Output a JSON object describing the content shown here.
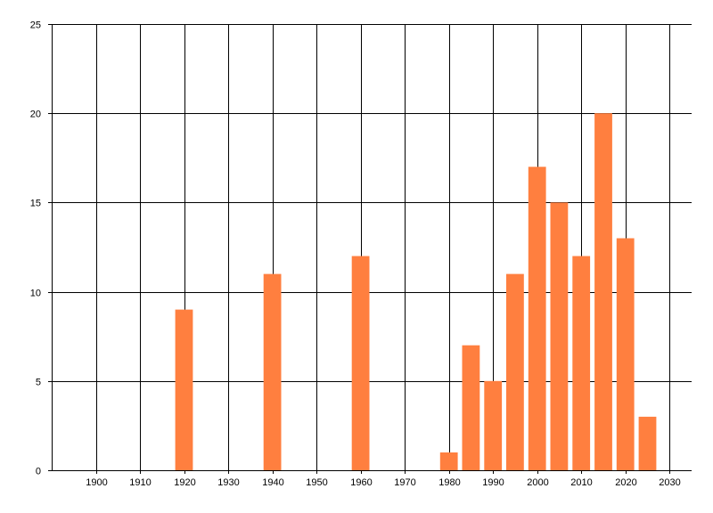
{
  "chart_data": {
    "type": "bar",
    "title": "",
    "xlabel": "",
    "ylabel": "",
    "x": [
      1920,
      1940,
      1960,
      1980,
      1985,
      1990,
      1995,
      2000,
      2005,
      2010,
      2015,
      2020,
      2025
    ],
    "values": [
      9,
      11,
      12,
      1,
      7,
      5,
      11,
      17,
      15,
      12,
      20,
      13,
      3
    ],
    "xlim": [
      1890,
      2035
    ],
    "ylim": [
      0,
      25
    ],
    "x_ticks": [
      1900,
      1910,
      1920,
      1930,
      1940,
      1950,
      1960,
      1970,
      1980,
      1990,
      2000,
      2010,
      2020,
      2030
    ],
    "y_ticks": [
      0,
      5,
      10,
      15,
      20,
      25
    ],
    "grid": true,
    "legend": "none",
    "bar_color": "#ff7f3f",
    "grid_color": "#000000"
  }
}
